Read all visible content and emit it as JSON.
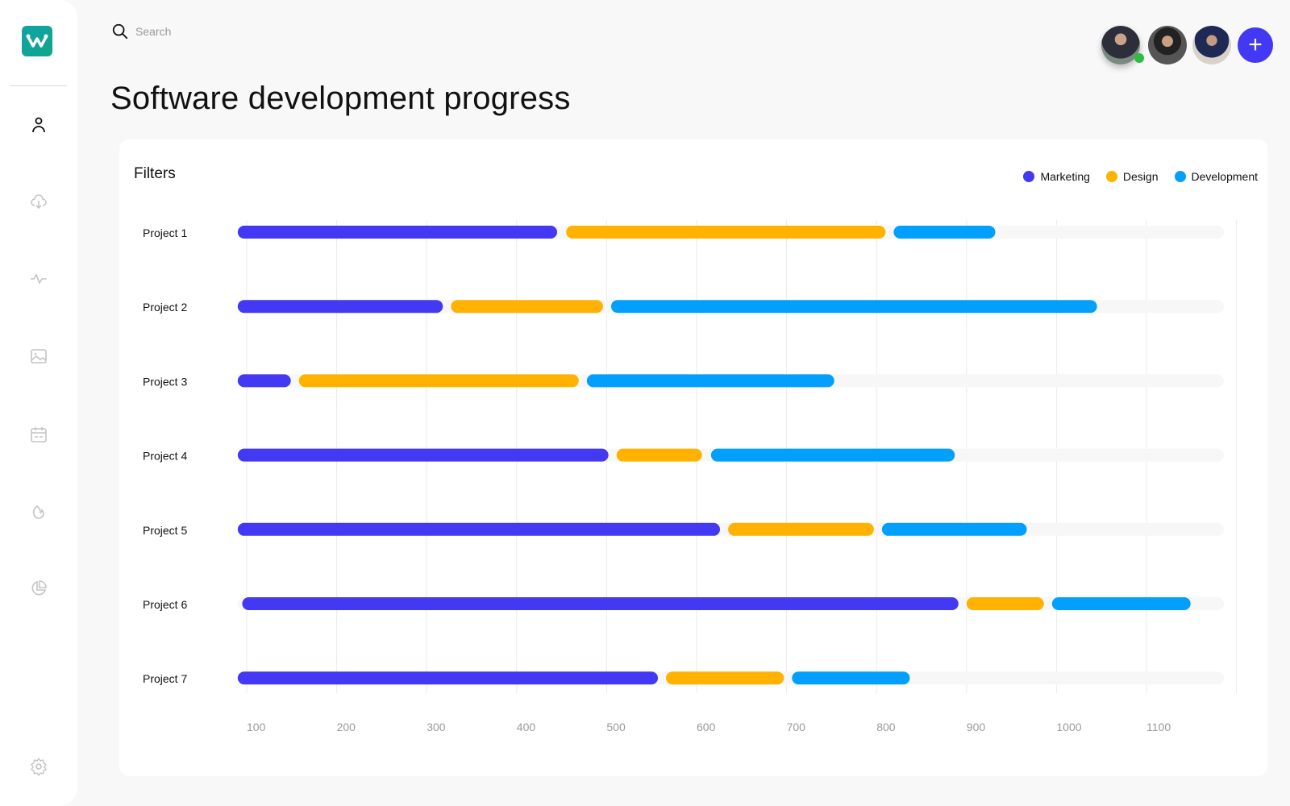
{
  "search": {
    "placeholder": "Search"
  },
  "page_title": "Software development progress",
  "sidebar": {
    "items": [
      {
        "icon": "user-icon",
        "active": true
      },
      {
        "icon": "cloud-download-icon"
      },
      {
        "icon": "activity-icon"
      },
      {
        "icon": "image-icon"
      },
      {
        "icon": "calendar-icon"
      },
      {
        "icon": "fire-icon"
      },
      {
        "icon": "pie-chart-icon"
      },
      {
        "icon": "settings-icon"
      }
    ]
  },
  "header": {
    "avatars": 3,
    "online_status": "online",
    "add_button_icon": "plus-icon"
  },
  "card": {
    "filters_label": "Filters"
  },
  "colors": {
    "marketing": "#4339f2",
    "design": "#ffb200",
    "development": "#02a0fc",
    "track": "#f7f7f7",
    "accent": "#4339f2"
  },
  "chart_data": {
    "type": "bar",
    "orientation": "horizontal-stacked-segments",
    "categories": [
      "Project 1",
      "Project 2",
      "Project 3",
      "Project 4",
      "Project 5",
      "Project 6",
      "Project 7"
    ],
    "series": [
      {
        "name": "Marketing",
        "color": "#4339f2",
        "ranges": [
          [
            90,
            445
          ],
          [
            90,
            318
          ],
          [
            90,
            149
          ],
          [
            90,
            502
          ],
          [
            90,
            626
          ],
          [
            95,
            891
          ],
          [
            90,
            557
          ]
        ]
      },
      {
        "name": "Design",
        "color": "#ffb200",
        "ranges": [
          [
            455,
            810
          ],
          [
            327,
            496
          ],
          [
            158,
            469
          ],
          [
            511,
            606
          ],
          [
            635,
            797
          ],
          [
            900,
            986
          ],
          [
            566,
            697
          ]
        ]
      },
      {
        "name": "Development",
        "color": "#02a0fc",
        "ranges": [
          [
            819,
            932
          ],
          [
            505,
            1045
          ],
          [
            478,
            753
          ],
          [
            616,
            887
          ],
          [
            806,
            967
          ],
          [
            995,
            1149
          ],
          [
            706,
            837
          ]
        ]
      }
    ],
    "x_ticks": [
      "100",
      "200",
      "300",
      "400",
      "500",
      "600",
      "700",
      "800",
      "900",
      "1000",
      "1100"
    ],
    "xlim": [
      90,
      1200
    ],
    "track_end": 1186,
    "grid": "vertical",
    "legend": "top-right"
  }
}
